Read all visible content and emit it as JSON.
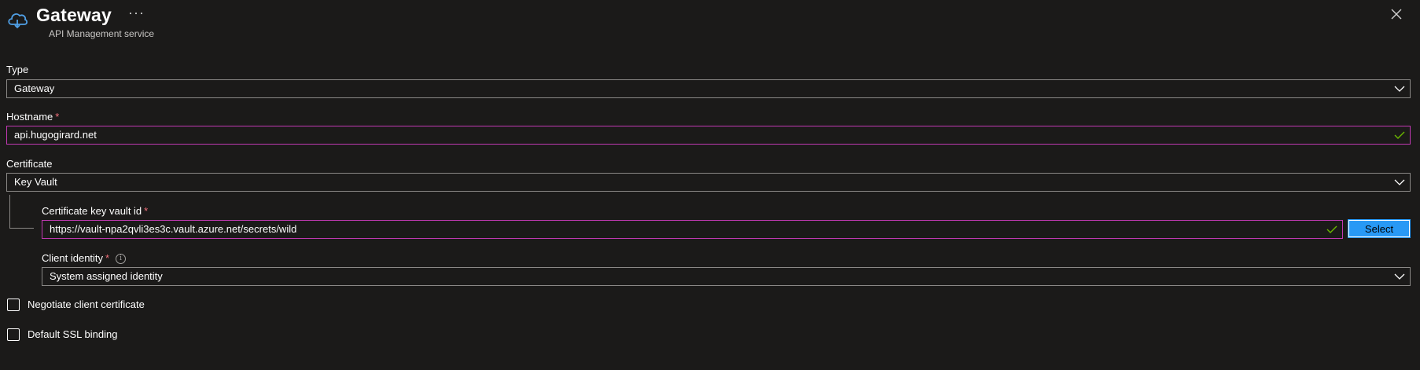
{
  "header": {
    "title": "Gateway",
    "more_label": "···",
    "subtitle": "API Management service",
    "icon": "cloud-gateway-icon",
    "close_icon": "close-icon"
  },
  "form": {
    "type": {
      "label": "Type",
      "value": "Gateway"
    },
    "hostname": {
      "label": "Hostname",
      "required_mark": "*",
      "value": "api.hugogirard.net"
    },
    "certificate": {
      "label": "Certificate",
      "value": "Key Vault"
    },
    "key_vault_id": {
      "label": "Certificate key vault id",
      "required_mark": "*",
      "value": "https://vault-npa2qvli3es3c.vault.azure.net/secrets/wild",
      "select_label": "Select"
    },
    "client_identity": {
      "label": "Client identity",
      "required_mark": "*",
      "info_icon": "i",
      "value": "System assigned identity"
    },
    "negotiate_client_cert": {
      "label": "Negotiate client certificate",
      "checked": false
    },
    "default_ssl_binding": {
      "label": "Default SSL binding",
      "checked": false
    }
  },
  "colors": {
    "background": "#1b1a19",
    "border": "#8a8886",
    "focus_border": "#c239b3",
    "required": "#f1707b",
    "accent": "#2899f5",
    "valid_check": "#6bb700"
  }
}
